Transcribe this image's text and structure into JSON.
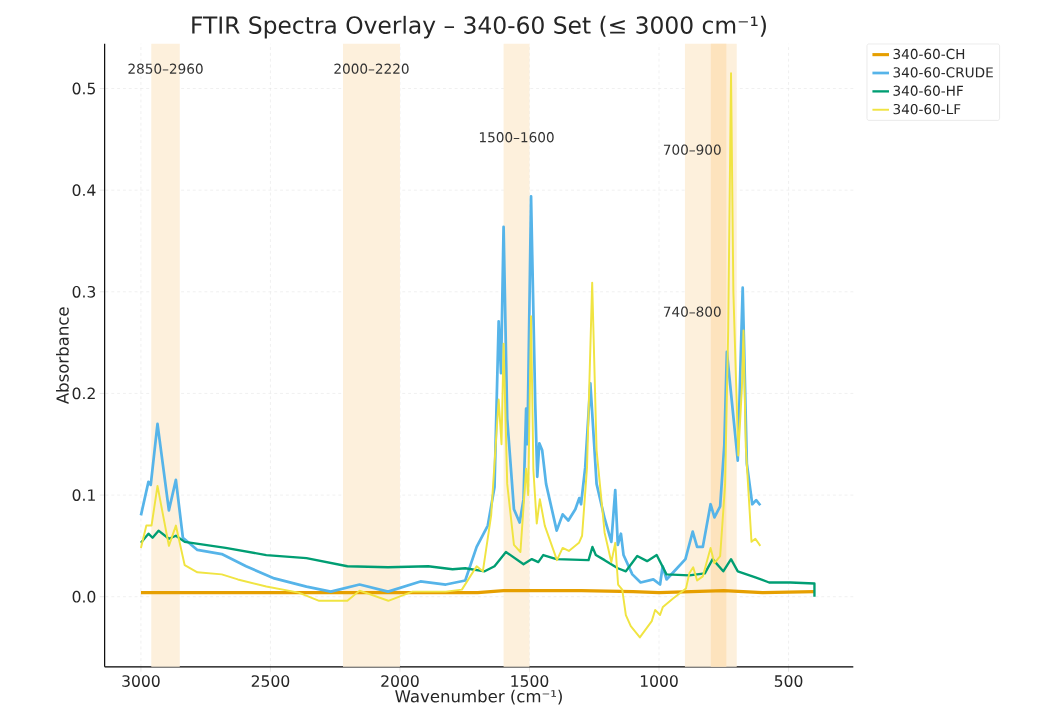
{
  "chart_data": {
    "type": "line",
    "title": "FTIR Spectra Overlay – 340-60 Set (≤ 3000 cm⁻¹)",
    "xlabel": "Wavenumber (cm⁻¹)",
    "ylabel": "Absorbance",
    "xlim": [
      3140,
      250
    ],
    "ylim": [
      -0.069,
      0.544
    ],
    "xticks": [
      3000,
      2500,
      2000,
      1500,
      1000,
      500
    ],
    "yticks": [
      {
        "value": 0.0,
        "label": "0.0"
      },
      0.1,
      0.2,
      0.3,
      0.4,
      0.5
    ],
    "grid": true,
    "legend": "top right",
    "bands": [
      {
        "axis": "x",
        "from": 2850,
        "to": 2960,
        "label": "2850–2960",
        "color": "#fdf0dc"
      },
      {
        "axis": "x",
        "from": 2000,
        "to": 2220,
        "label": "2000–2220",
        "color": "#fdf0dc"
      },
      {
        "axis": "x",
        "from": 1500,
        "to": 1600,
        "label": "1500–1600",
        "color": "#fdf0dc"
      },
      {
        "axis": "x",
        "from": 700,
        "to": 900,
        "label": "700–900",
        "color": "#fdf0dc"
      },
      {
        "axis": "x",
        "from": 740,
        "to": 800,
        "label": "740–800",
        "color": "#fde3bd"
      }
    ],
    "series": [
      {
        "name": "340-60-CH",
        "color": "#e69f00",
        "x": [
          3000,
          2500,
          2000,
          1700,
          1600,
          1300,
          1100,
          1000,
          750,
          600,
          400
        ],
        "values": [
          0.004,
          0.004,
          0.004,
          0.004,
          0.006,
          0.006,
          0.005,
          0.004,
          0.006,
          0.004,
          0.005
        ]
      },
      {
        "name": "340-60-CRUDE",
        "color": "#56b4e9",
        "x": [
          3000,
          2971,
          2962,
          2936,
          2892,
          2865,
          2838,
          2782,
          2688,
          2594,
          2485,
          2361,
          2267,
          2156,
          2046,
          1921,
          1823,
          1748,
          1704,
          1661,
          1635,
          1619,
          1610,
          1600,
          1586,
          1560,
          1538,
          1523,
          1513,
          1508,
          1494,
          1478,
          1470,
          1462,
          1451,
          1436,
          1395,
          1372,
          1350,
          1323,
          1308,
          1301,
          1285,
          1265,
          1241,
          1210,
          1184,
          1169,
          1159,
          1147,
          1137,
          1103,
          1071,
          1022,
          996,
          986,
          971,
          934,
          898,
          870,
          853,
          831,
          801,
          786,
          764,
          748,
          738,
          722,
          696,
          677,
          661,
          640,
          625,
          609
        ],
        "values": [
          0.08,
          0.113,
          0.11,
          0.17,
          0.085,
          0.115,
          0.058,
          0.046,
          0.042,
          0.03,
          0.018,
          0.01,
          0.005,
          0.012,
          0.005,
          0.015,
          0.012,
          0.016,
          0.049,
          0.07,
          0.108,
          0.271,
          0.22,
          0.364,
          0.175,
          0.086,
          0.073,
          0.096,
          0.185,
          0.15,
          0.394,
          0.191,
          0.118,
          0.151,
          0.144,
          0.111,
          0.065,
          0.081,
          0.075,
          0.086,
          0.097,
          0.091,
          0.127,
          0.21,
          0.111,
          0.077,
          0.054,
          0.105,
          0.051,
          0.062,
          0.041,
          0.022,
          0.014,
          0.017,
          0.012,
          0.03,
          0.017,
          0.027,
          0.037,
          0.064,
          0.049,
          0.049,
          0.091,
          0.078,
          0.089,
          0.149,
          0.241,
          null,
          0.134,
          0.304,
          0.131,
          0.091,
          0.095,
          0.09
        ]
      },
      {
        "name": "340-60-HF",
        "color": "#009e73",
        "x": [
          3000,
          2971,
          2955,
          2932,
          2892,
          2865,
          2831,
          2673,
          2516,
          2361,
          2203,
          2046,
          1891,
          1797,
          1748,
          1673,
          1635,
          1591,
          1523,
          1491,
          1466,
          1447,
          1396,
          1272,
          1257,
          1244,
          1210,
          1159,
          1128,
          1084,
          1046,
          1009,
          971,
          883,
          823,
          793,
          752,
          722,
          696,
          628,
          575,
          493,
          400,
          400
        ],
        "values": [
          0.053,
          0.062,
          0.058,
          0.065,
          0.057,
          0.06,
          0.054,
          0.048,
          0.041,
          0.038,
          0.03,
          0.029,
          0.03,
          0.027,
          0.028,
          0.025,
          0.03,
          0.044,
          0.032,
          0.037,
          0.034,
          0.041,
          0.037,
          0.036,
          0.049,
          0.041,
          0.036,
          0.028,
          0.025,
          0.04,
          0.035,
          0.041,
          0.022,
          0.021,
          0.023,
          0.037,
          0.025,
          0.037,
          0.025,
          0.019,
          0.014,
          0.014,
          0.013,
          0.0
        ]
      },
      {
        "name": "340-60-LF",
        "color": "#f0e442",
        "x": [
          3000,
          2979,
          2959,
          2936,
          2892,
          2865,
          2831,
          2782,
          2688,
          2626,
          2516,
          2391,
          2312,
          2203,
          2156,
          2045,
          1952,
          1823,
          1761,
          1704,
          1680,
          1648,
          1619,
          1608,
          1600,
          1586,
          1560,
          1535,
          1513,
          1505,
          1494,
          1485,
          1472,
          1460,
          1441,
          1394,
          1372,
          1348,
          1309,
          1297,
          1278,
          1258,
          1241,
          1210,
          1184,
          1169,
          1158,
          1142,
          1128,
          1109,
          1074,
          1028,
          1015,
          996,
          985,
          947,
          896,
          883,
          868,
          853,
          831,
          801,
          786,
          764,
          745,
          733,
          722,
          713,
          694,
          680,
          674,
          665,
          643,
          628,
          609
        ],
        "values": [
          0.048,
          0.07,
          0.07,
          0.109,
          0.05,
          0.07,
          0.031,
          0.024,
          0.022,
          0.017,
          0.01,
          0.004,
          -0.004,
          -0.004,
          0.006,
          -0.004,
          0.005,
          0.005,
          0.007,
          0.03,
          0.025,
          0.08,
          0.194,
          0.15,
          0.249,
          0.111,
          0.051,
          0.044,
          0.126,
          0.1,
          0.276,
          0.125,
          0.072,
          0.096,
          0.07,
          0.036,
          0.048,
          0.045,
          0.053,
          0.06,
          0.127,
          0.309,
          0.144,
          0.063,
          0.034,
          0.053,
          0.012,
          0.007,
          -0.018,
          -0.029,
          -0.04,
          -0.024,
          -0.013,
          -0.018,
          -0.01,
          -0.002,
          0.008,
          0.023,
          0.029,
          0.016,
          0.02,
          0.048,
          0.033,
          0.04,
          0.11,
          0.262,
          0.515,
          0.3,
          0.139,
          0.206,
          0.262,
          0.147,
          0.054,
          0.057,
          0.05
        ]
      }
    ]
  }
}
